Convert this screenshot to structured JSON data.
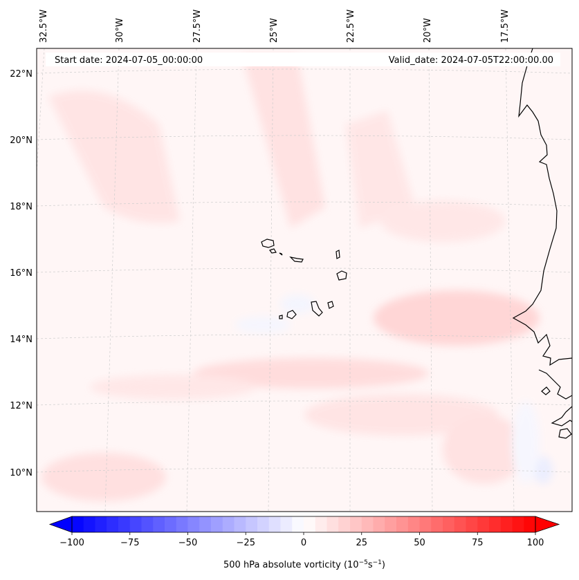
{
  "header": {
    "start_date": "Start date: 2024-07-05_00:00:00",
    "valid_date": "Valid_date: 2024-07-05T22:00:00.00"
  },
  "map": {
    "lon_labels": [
      "32.5°W",
      "30°W",
      "27.5°W",
      "25°W",
      "22.5°W",
      "20°W",
      "17.5°W"
    ],
    "lat_labels": [
      "22°N",
      "20°N",
      "18°N",
      "16°N",
      "14°N",
      "12°N",
      "10°N"
    ],
    "field": "500 hPa absolute vorticity",
    "region": "Cape Verde Islands and West African coast",
    "gridlines": true
  },
  "colorbar": {
    "tick_labels": [
      "−100",
      "−75",
      "−50",
      "−25",
      "0",
      "25",
      "50",
      "75",
      "100"
    ],
    "tick_values": [
      -100,
      -75,
      -50,
      -25,
      0,
      25,
      50,
      75,
      100
    ],
    "range": [
      -100,
      100
    ],
    "step": 5,
    "extend": "both",
    "colormap": "bwr",
    "label_main": "500 hPa absolute vorticity (10",
    "label_exp1": "−5",
    "label_mid": "s",
    "label_exp2": "−1",
    "label_end": ")"
  },
  "colors": {
    "background_field": "#fff6f6",
    "coastline": "#000000",
    "gridline": "#cccccc"
  }
}
